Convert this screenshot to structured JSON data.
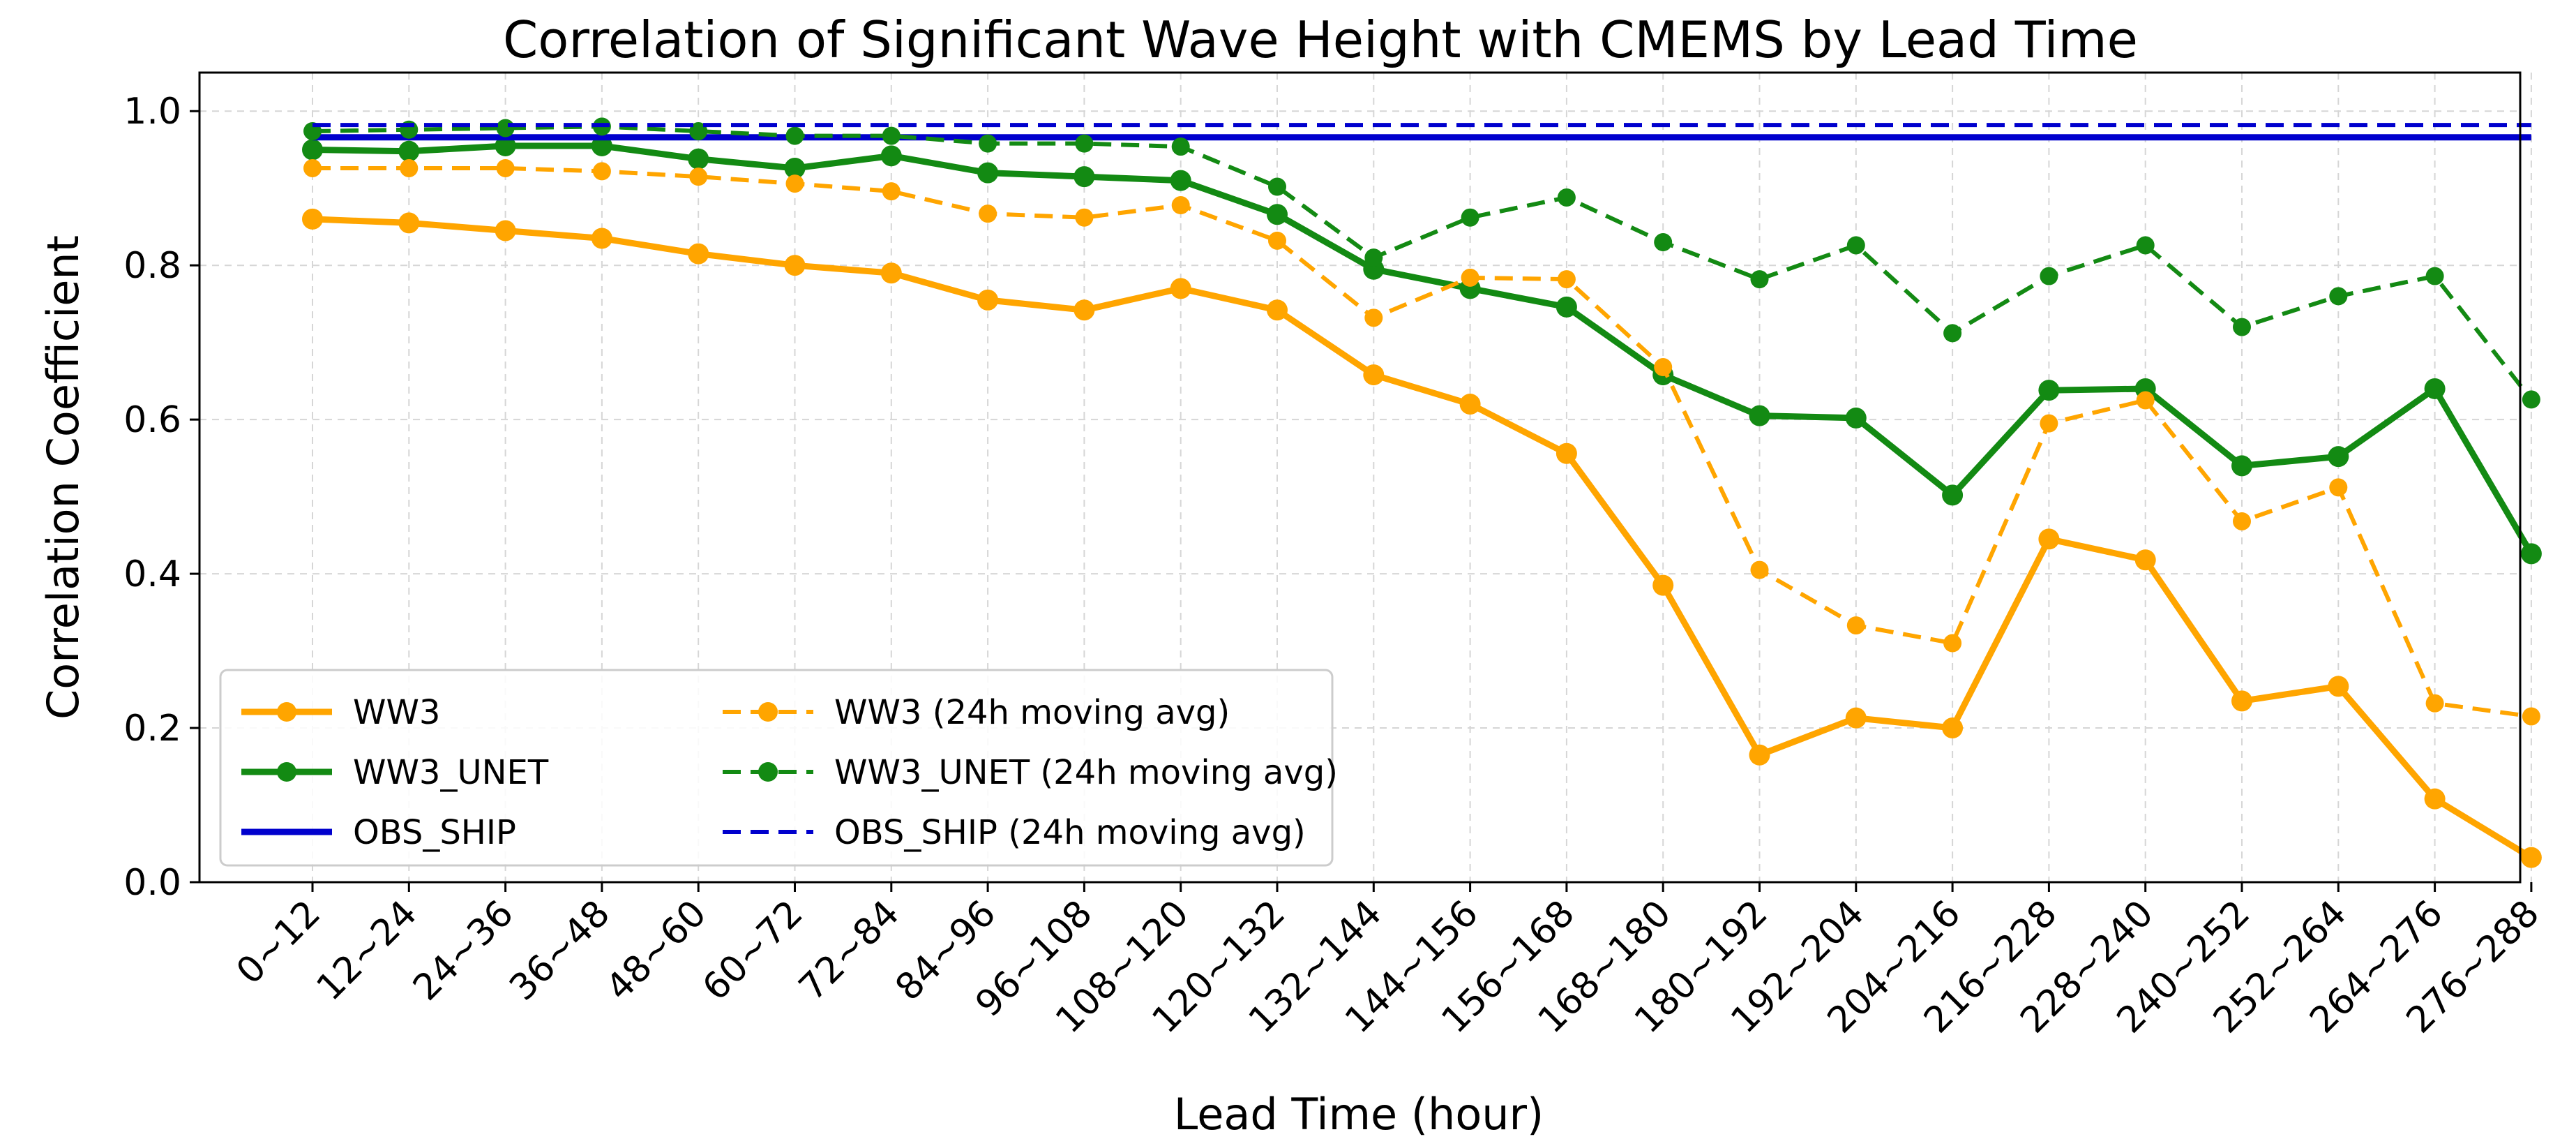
{
  "chart_data": {
    "type": "line",
    "title": "Correlation of Significant Wave Height with CMEMS by Lead Time",
    "xlabel": "Lead Time (hour)",
    "ylabel": "Correlation Coefficient",
    "ylim": [
      0,
      1.05
    ],
    "yticks": [
      "0.0",
      "0.2",
      "0.4",
      "0.6",
      "0.8",
      "1.0"
    ],
    "ytick_values": [
      0,
      0.2,
      0.4,
      0.6,
      0.8,
      1.0
    ],
    "grid": true,
    "legend_position": "lower-left",
    "categories": [
      "0~12",
      "12~24",
      "24~36",
      "36~48",
      "48~60",
      "60~72",
      "72~84",
      "84~96",
      "96~108",
      "108~120",
      "120~132",
      "132~144",
      "144~156",
      "156~168",
      "168~180",
      "180~192",
      "192~204",
      "204~216",
      "216~228",
      "228~240",
      "240~252",
      "252~264",
      "264~276",
      "276~288"
    ],
    "series": [
      {
        "name": "WW3",
        "color": "#FFA500",
        "style": "solid",
        "markers": true,
        "values": [
          0.86,
          0.855,
          0.845,
          0.835,
          0.815,
          0.8,
          0.79,
          0.755,
          0.742,
          0.77,
          0.742,
          0.658,
          0.62,
          0.556,
          0.385,
          0.165,
          0.213,
          0.2,
          0.445,
          0.418,
          0.235,
          0.254,
          0.108,
          0.032
        ]
      },
      {
        "name": "WW3_UNET",
        "color": "#138A13",
        "style": "solid",
        "markers": true,
        "values": [
          0.95,
          0.948,
          0.955,
          0.955,
          0.938,
          0.926,
          0.942,
          0.92,
          0.915,
          0.91,
          0.866,
          0.795,
          0.77,
          0.746,
          0.658,
          0.605,
          0.602,
          0.502,
          0.638,
          0.64,
          0.54,
          0.552,
          0.64,
          0.426
        ]
      },
      {
        "name": "OBS_SHIP",
        "color": "#0000CD",
        "style": "solid",
        "markers": false,
        "values": [
          0.966,
          0.966,
          0.966,
          0.966,
          0.966,
          0.966,
          0.966,
          0.966,
          0.966,
          0.966,
          0.966,
          0.966,
          0.966,
          0.966,
          0.966,
          0.966,
          0.966,
          0.966,
          0.966,
          0.966,
          0.966,
          0.966,
          0.966,
          0.966
        ]
      },
      {
        "name": "WW3 (24h moving avg)",
        "color": "#FFA500",
        "style": "dashed",
        "markers": true,
        "values": [
          0.926,
          0.926,
          0.926,
          0.922,
          0.915,
          0.906,
          0.896,
          0.867,
          0.862,
          0.878,
          0.832,
          0.732,
          0.784,
          0.782,
          0.668,
          0.405,
          0.333,
          0.31,
          0.595,
          0.625,
          0.468,
          0.512,
          0.232,
          0.215
        ]
      },
      {
        "name": "WW3_UNET (24h moving avg)",
        "color": "#138A13",
        "style": "dashed",
        "markers": true,
        "values": [
          0.974,
          0.976,
          0.978,
          0.98,
          0.974,
          0.968,
          0.968,
          0.958,
          0.958,
          0.954,
          0.902,
          0.81,
          0.862,
          0.888,
          0.83,
          0.782,
          0.826,
          0.712,
          0.786,
          0.826,
          0.72,
          0.76,
          0.786,
          0.626
        ]
      },
      {
        "name": "OBS_SHIP (24h moving avg)",
        "color": "#0000CD",
        "style": "dashed",
        "markers": false,
        "values": [
          0.982,
          0.982,
          0.982,
          0.982,
          0.982,
          0.982,
          0.982,
          0.982,
          0.982,
          0.982,
          0.982,
          0.982,
          0.982,
          0.982,
          0.982,
          0.982,
          0.982,
          0.982,
          0.982,
          0.982,
          0.982,
          0.982,
          0.982,
          0.982
        ]
      }
    ]
  }
}
